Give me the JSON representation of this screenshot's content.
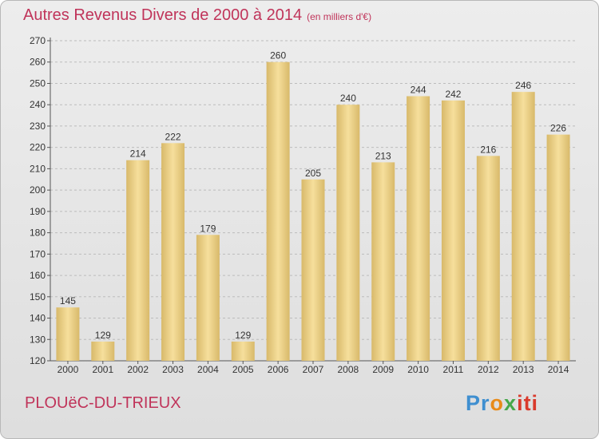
{
  "title": "Autres Revenus Divers de 2000 à 2014",
  "title_unit": "(en milliers d'€)",
  "location": "PLOUëC-DU-TRIEUX",
  "brand": {
    "p1": "Pr",
    "p2": "o",
    "p3": "x",
    "p4": "iti"
  },
  "colors": {
    "title": "#c0345a",
    "bar_light": "#f6df9c",
    "bar_dark": "#d8b96a",
    "grid": "#bcbcbc"
  },
  "chart_data": {
    "type": "bar",
    "title": "Autres Revenus Divers de 2000 à 2014",
    "xlabel": "",
    "ylabel": "",
    "categories": [
      "2000",
      "2001",
      "2002",
      "2003",
      "2004",
      "2005",
      "2006",
      "2007",
      "2008",
      "2009",
      "2010",
      "2011",
      "2012",
      "2013",
      "2014"
    ],
    "values": [
      145,
      129,
      214,
      222,
      179,
      129,
      260,
      205,
      240,
      213,
      244,
      242,
      216,
      246,
      226
    ],
    "ylim": [
      120,
      270
    ],
    "yticks": [
      120,
      130,
      140,
      150,
      160,
      170,
      180,
      190,
      200,
      210,
      220,
      230,
      240,
      250,
      260,
      270
    ],
    "grid": true
  }
}
